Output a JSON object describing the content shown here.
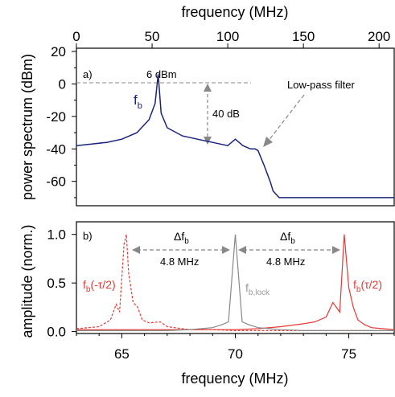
{
  "colors": {
    "blue": "#1a237e",
    "red": "#e53935",
    "gray": "#888888",
    "axis": "#000000",
    "dash": "#888888"
  },
  "chart_data": [
    {
      "type": "line",
      "panel_label": "a)",
      "top_axis": {
        "label": "frequency (MHz)",
        "range": [
          0,
          210
        ],
        "ticks": [
          0,
          50,
          100,
          150,
          200
        ]
      },
      "ylabel": "power spectrum (dBm)",
      "ylim": [
        -75,
        22
      ],
      "yticks": [
        20,
        0,
        -20,
        -40,
        -60
      ],
      "annotations": {
        "peak_level": "6 dBm",
        "peak_name": "f",
        "peak_name_sub": "b",
        "range": "40 dB",
        "filter": "Low-pass filter"
      },
      "series": [
        {
          "color": "blue",
          "x": [
            0,
            10,
            20,
            30,
            40,
            48,
            52,
            54,
            56,
            60,
            70,
            80,
            90,
            100,
            105,
            110,
            115,
            118,
            120,
            124,
            128,
            130,
            134,
            140,
            150,
            160,
            170,
            180,
            190,
            200,
            210
          ],
          "y": [
            -38,
            -37,
            -36,
            -34,
            -30,
            -22,
            -12,
            6,
            -18,
            -27,
            -32,
            -34,
            -36,
            -38,
            -34,
            -38,
            -40,
            -40,
            -41,
            -50,
            -60,
            -66,
            -70,
            -70,
            -70,
            -70,
            -70,
            -70,
            -70,
            -70,
            -70
          ]
        }
      ]
    },
    {
      "type": "line",
      "panel_label": "b)",
      "xlabel": "frequency (MHz)",
      "xlim": [
        63,
        77
      ],
      "xticks": [
        65,
        70,
        75
      ],
      "ylabel": "amplitude (norm.)",
      "ylim": [
        -0.02,
        1.13
      ],
      "yticks": [
        0.0,
        0.5,
        1.0
      ],
      "annotations": {
        "delta": "Δf",
        "delta_sub": "b",
        "offset": "4.8 MHz",
        "left_label": "f",
        "left_label_sub": "b",
        "left_label_arg": "(-τ/2)",
        "right_label": "f",
        "right_label_sub": "b",
        "right_label_arg": "(τ/2)",
        "lock_label": "f",
        "lock_label_sub": "b,lock"
      },
      "series": [
        {
          "color": "red",
          "style": "dashed",
          "x": [
            63,
            64,
            64.5,
            64.75,
            64.9,
            65.1,
            65.2,
            65.3,
            65.5,
            65.7,
            65.9,
            66.2,
            66.7,
            67,
            68,
            69,
            70,
            71,
            72,
            73,
            74,
            75,
            76,
            77
          ],
          "y": [
            0.03,
            0.05,
            0.12,
            0.28,
            0.2,
            0.9,
            1.0,
            0.6,
            0.3,
            0.25,
            0.12,
            0.09,
            0.1,
            0.05,
            0.02,
            0.02,
            0.01,
            0.01,
            0.01,
            0.01,
            0.01,
            0.01,
            0.01,
            0.01
          ]
        },
        {
          "color": "red",
          "style": "solid",
          "x": [
            63,
            64,
            65,
            66,
            67,
            68,
            69,
            70,
            71,
            72,
            73,
            73.5,
            74,
            74.3,
            74.6,
            74.8,
            75.0,
            75.2,
            75.4,
            75.7,
            76,
            76.5,
            77
          ],
          "y": [
            0.02,
            0.02,
            0.02,
            0.02,
            0.02,
            0.02,
            0.02,
            0.02,
            0.03,
            0.05,
            0.08,
            0.1,
            0.15,
            0.3,
            0.2,
            1.0,
            0.45,
            0.25,
            0.12,
            0.07,
            0.04,
            0.03,
            0.02
          ]
        },
        {
          "color": "gray",
          "style": "solid",
          "x": [
            63,
            67,
            68,
            69,
            69.4,
            69.7,
            70,
            70.3,
            70.6,
            71,
            72,
            73,
            77
          ],
          "y": [
            0.01,
            0.01,
            0.02,
            0.04,
            0.07,
            0.1,
            1.0,
            0.1,
            0.07,
            0.04,
            0.02,
            0.01,
            0.01
          ]
        }
      ]
    }
  ]
}
